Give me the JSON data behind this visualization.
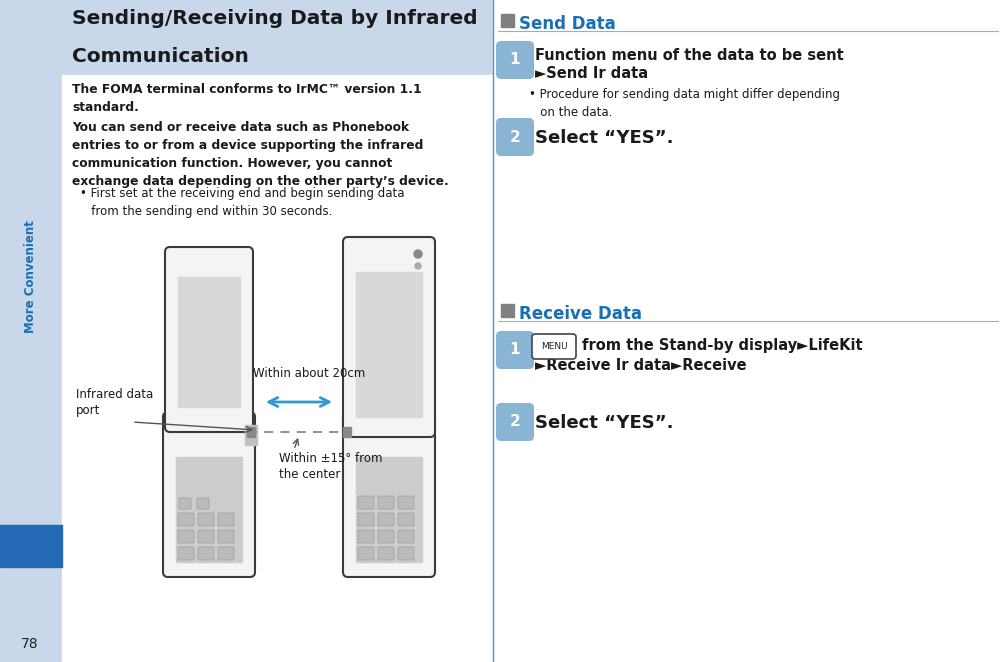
{
  "bg_color": "#ffffff",
  "sidebar_color": "#c8d8ea",
  "header_bg_color": "#c8d8ea",
  "blue_bar_color": "#2469b3",
  "divider_color": "#5b8fc9",
  "title_text_line1": "Sending/Receiving Data by Infrared",
  "title_text_line2": "Communication",
  "title_color": "#1a1a1a",
  "body_text_color": "#1a1a1a",
  "step_bubble_color": "#8ab4d4",
  "step_text_color": "#1a1a1a",
  "section_title_color": "#1a6eb5",
  "section_sq_color": "#808080",
  "sidebar_text": "More Convenient",
  "sidebar_text_color": "#1a6eb5",
  "page_number": "78",
  "send_title": "Send Data",
  "recv_title": "Receive Data",
  "intro1": "The FOMA terminal conforms to IrMC™ version 1.1\nstandard.",
  "intro2": "You can send or receive data such as Phonebook\nentries to or from a device supporting the infrared\ncommunication function. However, you cannot\nexchange data depending on the other party’s device.",
  "intro_bullet": "• First set at the receiving end and begin sending data\n   from the sending end within 30 seconds.",
  "send1_line1": "Function menu of the data to be sent",
  "send1_line2": "►Send Ir data",
  "send1_bullet": "• Procedure for sending data might differ depending\n   on the data.",
  "send2": "Select “YES”.",
  "recv1_menu": "MENU",
  "recv1_line1": " from the Stand-by display►LifeKit",
  "recv1_line2": "►Receive Ir data►Receive",
  "recv2": "Select “YES”.",
  "ann_20cm": "Within about 20cm",
  "ann_15deg": "Within ±15° from\nthe center",
  "ann_ir": "Infrared data\nport",
  "phone_fill": "#f4f4f4",
  "phone_edge": "#3a3a3a",
  "screen_fill": "#d8d8d8",
  "key_fill": "#cccccc",
  "arrow_blue": "#3399cc",
  "dash_color": "#888888"
}
